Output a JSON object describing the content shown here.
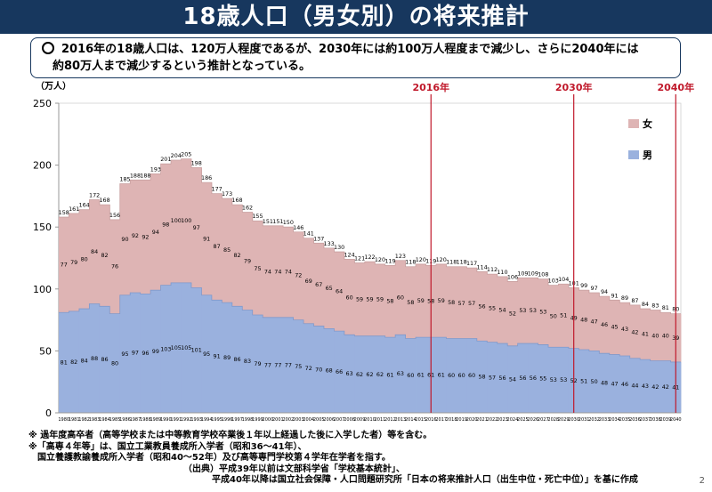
{
  "header": {
    "title": "18歳人口（男女別）の将来推計"
  },
  "summary": {
    "line1": "2016年の18歳人口は、120万人程度であるが、2030年には約100万人程度まで減少し、さらに2040年には",
    "line2": "約80万人まで減少するという推計となっている。"
  },
  "chart_data": {
    "type": "bar",
    "stacked": true,
    "ylabel": "（万人）",
    "ylim": [
      0,
      250
    ],
    "yticks": [
      0,
      50,
      100,
      150,
      200,
      250
    ],
    "categories": [
      "1980",
      "1981",
      "1982",
      "1983",
      "1984",
      "1985",
      "1986",
      "1987",
      "1988",
      "1989",
      "1990",
      "1991",
      "1992",
      "1993",
      "1994",
      "1995",
      "1996",
      "1997",
      "1998",
      "1999",
      "2000",
      "2001",
      "2002",
      "2003",
      "2004",
      "2005",
      "2006",
      "2007",
      "2008",
      "2009",
      "2010",
      "2011",
      "2012",
      "2013",
      "2014",
      "2015",
      "2016",
      "2017",
      "2018",
      "2019",
      "2020",
      "2021",
      "2022",
      "2023",
      "2024",
      "2025",
      "2026",
      "2027",
      "2028",
      "2029",
      "2030",
      "2031",
      "2032",
      "2033",
      "2034",
      "2035",
      "2036",
      "2037",
      "2038",
      "2039",
      "2040"
    ],
    "totals": [
      158,
      161,
      164,
      172,
      168,
      156,
      185,
      188,
      188,
      193,
      201,
      204,
      205,
      198,
      186,
      177,
      173,
      168,
      162,
      155,
      151,
      151,
      150,
      146,
      141,
      137,
      133,
      130,
      124,
      121,
      122,
      120,
      119,
      123,
      118,
      120,
      119,
      120,
      118,
      118,
      117,
      114,
      112,
      110,
      106,
      109,
      109,
      108,
      103,
      104,
      101,
      99,
      97,
      94,
      91,
      89,
      87,
      84,
      83,
      81,
      80
    ],
    "series": [
      {
        "name": "男",
        "color": "#9ab1de",
        "values": [
          81,
          82,
          84,
          88,
          86,
          80,
          95,
          97,
          96,
          99,
          103,
          105,
          105,
          101,
          95,
          91,
          89,
          86,
          83,
          79,
          77,
          77,
          77,
          75,
          72,
          70,
          68,
          66,
          63,
          62,
          62,
          62,
          61,
          63,
          60,
          61,
          61,
          61,
          60,
          60,
          60,
          58,
          57,
          56,
          54,
          56,
          56,
          55,
          53,
          53,
          52,
          51,
          50,
          48,
          47,
          46,
          44,
          43,
          42,
          42,
          41
        ]
      },
      {
        "name": "女",
        "color": "#deb4b4",
        "values": [
          77,
          79,
          80,
          84,
          82,
          76,
          90,
          92,
          92,
          94,
          98,
          100,
          100,
          97,
          91,
          87,
          85,
          82,
          79,
          75,
          74,
          74,
          74,
          72,
          69,
          67,
          65,
          64,
          60,
          59,
          59,
          59,
          58,
          60,
          58,
          59,
          58,
          59,
          58,
          57,
          57,
          56,
          55,
          54,
          52,
          53,
          53,
          53,
          50,
          51,
          49,
          48,
          47,
          46,
          45,
          43,
          42,
          41,
          40,
          40,
          39
        ]
      }
    ],
    "legend": {
      "placement": "top-right",
      "items": [
        "女",
        "男"
      ]
    },
    "markers": [
      {
        "label": "2016年",
        "year": "2016"
      },
      {
        "label": "2030年",
        "year": "2030"
      },
      {
        "label": "2040年",
        "year": "2040"
      }
    ],
    "marker_color": "#c0192b"
  },
  "footnotes": {
    "n1": "※ 過年度高卒者（高等学校または中等教育学校卒業後１年以上経過した後に入学した者）等を含む。",
    "n2": "※「高専４年等」は、国立工業教員養成所入学者（昭和36～41年）、",
    "n3": "　国立養護教諭養成所入学者（昭和40～52年）及び高等専門学校第４学年在学者を指す。",
    "n4": "（出典）平成39年以前は文部科学省「学校基本統計」、",
    "n5": "平成40年以降は国立社会保障・人口問題研究所「日本の将来推計人口（出生中位・死亡中位）」を基に作成"
  },
  "page": {
    "number": "2"
  }
}
